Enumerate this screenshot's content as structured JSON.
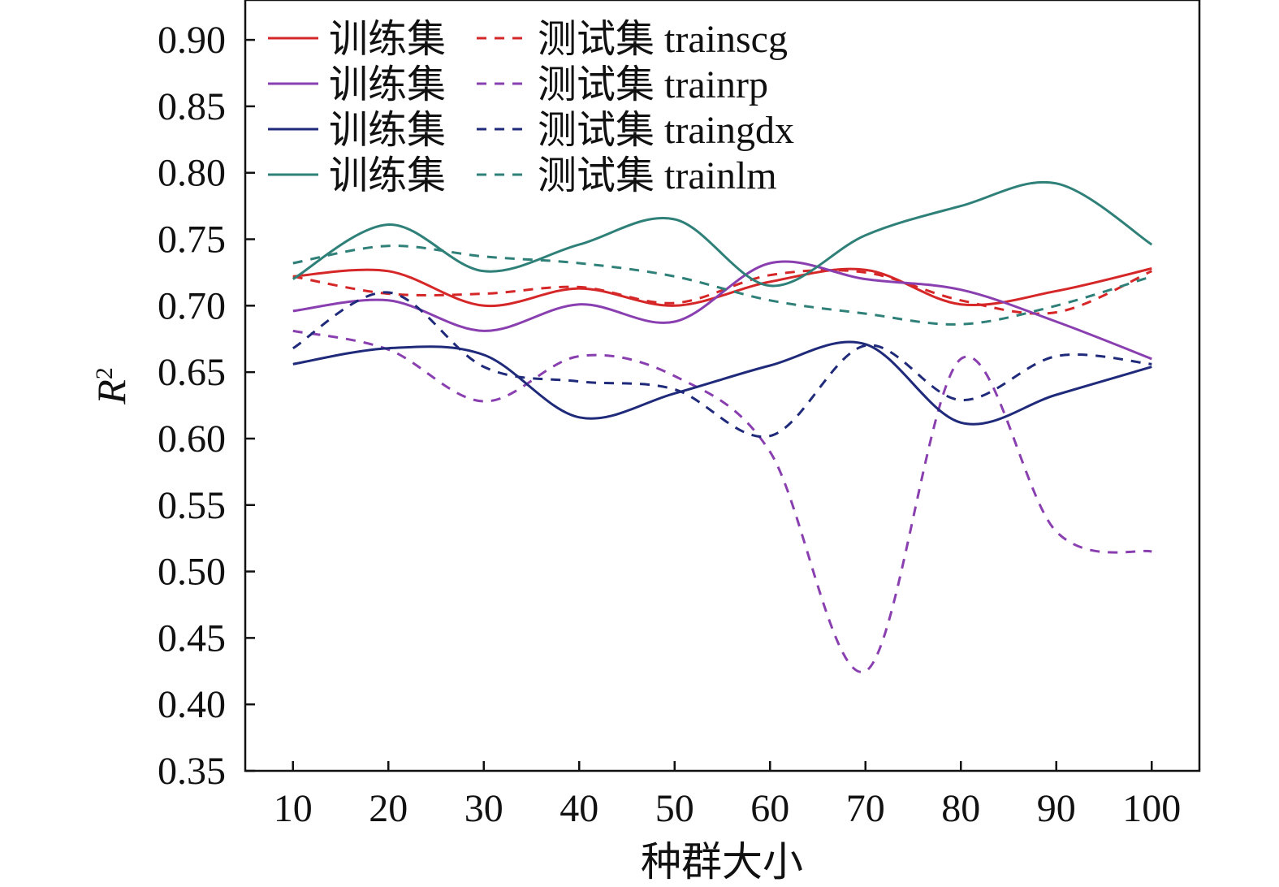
{
  "chart_data": {
    "type": "line",
    "xlabel": "种群大小",
    "ylabel": "R",
    "ylabel_sup": "2",
    "xlim": [
      5,
      105
    ],
    "ylim": [
      0.35,
      0.93
    ],
    "x_ticks": [
      "10",
      "20",
      "30",
      "40",
      "50",
      "60",
      "70",
      "80",
      "90",
      "100"
    ],
    "y_ticks": [
      "0.90",
      "0.85",
      "0.80",
      "0.75",
      "0.70",
      "0.65",
      "0.60",
      "0.55",
      "0.50",
      "0.45",
      "0.40",
      "0.35"
    ],
    "legend_position": "top-left",
    "x": [
      10,
      20,
      30,
      40,
      50,
      60,
      70,
      80,
      90,
      100
    ],
    "series": [
      {
        "name": "训练集",
        "method": "trainscg",
        "dataset": "train",
        "color": "#d62728",
        "dash": "solid",
        "values": [
          0.722,
          0.726,
          0.7,
          0.713,
          0.7,
          0.718,
          0.727,
          0.701,
          0.711,
          0.728
        ]
      },
      {
        "name": "测试集 trainscg",
        "method": "trainscg",
        "dataset": "test",
        "color": "#d62728",
        "dash": "dashed",
        "values": [
          0.722,
          0.709,
          0.709,
          0.714,
          0.702,
          0.723,
          0.725,
          0.704,
          0.695,
          0.726
        ]
      },
      {
        "name": "训练集",
        "method": "trainrp",
        "dataset": "train",
        "color": "#8a3fb0",
        "dash": "solid",
        "values": [
          0.696,
          0.704,
          0.681,
          0.701,
          0.688,
          0.732,
          0.72,
          0.712,
          0.688,
          0.66
        ]
      },
      {
        "name": "测试集 trainrp",
        "method": "trainrp",
        "dataset": "test",
        "color": "#8a3fb0",
        "dash": "dashed",
        "values": [
          0.681,
          0.667,
          0.628,
          0.662,
          0.647,
          0.59,
          0.425,
          0.66,
          0.53,
          0.515
        ]
      },
      {
        "name": "训练集",
        "method": "traingdx",
        "dataset": "train",
        "color": "#1f2a7a",
        "dash": "solid",
        "values": [
          0.656,
          0.668,
          0.663,
          0.616,
          0.634,
          0.655,
          0.671,
          0.612,
          0.633,
          0.654
        ]
      },
      {
        "name": "测试集 traingdx",
        "method": "traingdx",
        "dataset": "test",
        "color": "#1f2a7a",
        "dash": "dashed",
        "values": [
          0.668,
          0.71,
          0.654,
          0.643,
          0.637,
          0.602,
          0.67,
          0.629,
          0.662,
          0.656
        ]
      },
      {
        "name": "训练集",
        "method": "trainlm",
        "dataset": "train",
        "color": "#2e8078",
        "dash": "solid",
        "values": [
          0.72,
          0.761,
          0.726,
          0.746,
          0.765,
          0.715,
          0.753,
          0.775,
          0.792,
          0.746
        ]
      },
      {
        "name": "测试集 trainlm",
        "method": "trainlm",
        "dataset": "test",
        "color": "#2e8078",
        "dash": "dashed",
        "values": [
          0.732,
          0.745,
          0.737,
          0.732,
          0.722,
          0.704,
          0.694,
          0.686,
          0.7,
          0.722
        ]
      }
    ],
    "legend": [
      {
        "train_label": "训练集",
        "test_label": "测试集 trainscg",
        "color": "#d62728"
      },
      {
        "train_label": "训练集",
        "test_label": "测试集 trainrp",
        "color": "#8a3fb0"
      },
      {
        "train_label": "训练集",
        "test_label": "测试集 traingdx",
        "color": "#1f2a7a"
      },
      {
        "train_label": "训练集",
        "test_label": "测试集 trainlm",
        "color": "#2e8078"
      }
    ]
  }
}
